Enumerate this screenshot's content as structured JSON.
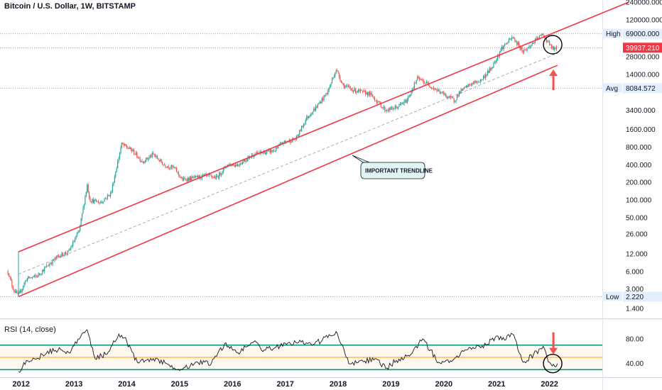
{
  "header": {
    "title": "Bitcoin / U.S. Dollar, 1W, BITSTAMP",
    "rsi_title": "RSI (14, close)"
  },
  "colors": {
    "up": "#26a69a",
    "down": "#ef5350",
    "channel": "#f23645",
    "rsi_band": "#089981",
    "rsi_mid": "#ff9800",
    "rsi_line": "#131722",
    "price_tag": "#f23645",
    "label_bg": "#e3effd"
  },
  "chart_data": [
    {
      "type": "candlestick",
      "title": "Bitcoin / U.S. Dollar, 1W, BITSTAMP",
      "y_scale": "log",
      "ylim": [
        1.0,
        240000
      ],
      "x_ticks": [
        "2012",
        "2013",
        "2014",
        "2015",
        "2016",
        "2017",
        "2018",
        "2019",
        "2020",
        "2021",
        "2022"
      ],
      "y_ticks": [
        "240000.000",
        "120000.000",
        "69000.000",
        "39937.210",
        "28000.000",
        "14000.000",
        "8084.572",
        "3400.000",
        "1600.000",
        "800.000",
        "400.000",
        "200.000",
        "100.000",
        "50.000",
        "26.000",
        "12.000",
        "6.000",
        "3.000",
        "2.220",
        "1.400"
      ],
      "levels": [
        {
          "name": "High",
          "value": 69000.0,
          "label": "69000.000"
        },
        {
          "name": "Current",
          "value": 39937.21,
          "label": "39937.210"
        },
        {
          "name": "Avg",
          "value": 8084.572,
          "label": "8084.572"
        },
        {
          "name": "Low",
          "value": 2.22,
          "label": "2.220"
        }
      ],
      "annotation": "IMPORTANT TRENDLINE",
      "price_path": [
        [
          2011.75,
          6.0
        ],
        [
          2011.85,
          3.0
        ],
        [
          2011.95,
          2.3
        ],
        [
          2012.1,
          4.5
        ],
        [
          2012.3,
          5.0
        ],
        [
          2012.5,
          7.5
        ],
        [
          2012.7,
          11.0
        ],
        [
          2012.9,
          13.0
        ],
        [
          2013.1,
          30.0
        ],
        [
          2013.25,
          180.0
        ],
        [
          2013.3,
          100.0
        ],
        [
          2013.5,
          90.0
        ],
        [
          2013.7,
          130.0
        ],
        [
          2013.9,
          900.0
        ],
        [
          2014.1,
          700.0
        ],
        [
          2014.3,
          450.0
        ],
        [
          2014.5,
          600.0
        ],
        [
          2014.7,
          400.0
        ],
        [
          2014.9,
          350.0
        ],
        [
          2015.05,
          220.0
        ],
        [
          2015.3,
          240.0
        ],
        [
          2015.5,
          260.0
        ],
        [
          2015.7,
          240.0
        ],
        [
          2015.9,
          400.0
        ],
        [
          2016.1,
          400.0
        ],
        [
          2016.4,
          600.0
        ],
        [
          2016.6,
          650.0
        ],
        [
          2016.8,
          700.0
        ],
        [
          2016.95,
          950.0
        ],
        [
          2017.2,
          1100.0
        ],
        [
          2017.4,
          2500.0
        ],
        [
          2017.6,
          4000.0
        ],
        [
          2017.8,
          7000.0
        ],
        [
          2017.96,
          17000.0
        ],
        [
          2018.1,
          9000.0
        ],
        [
          2018.3,
          7500.0
        ],
        [
          2018.6,
          6500.0
        ],
        [
          2018.9,
          3400.0
        ],
        [
          2019.1,
          3800.0
        ],
        [
          2019.3,
          5000.0
        ],
        [
          2019.5,
          12000.0
        ],
        [
          2019.7,
          9500.0
        ],
        [
          2019.9,
          7200.0
        ],
        [
          2020.2,
          5000.0
        ],
        [
          2020.3,
          7000.0
        ],
        [
          2020.5,
          9500.0
        ],
        [
          2020.7,
          11000.0
        ],
        [
          2020.9,
          18000.0
        ],
        [
          2021.1,
          40000.0
        ],
        [
          2021.3,
          60000.0
        ],
        [
          2021.5,
          35000.0
        ],
        [
          2021.6,
          40000.0
        ],
        [
          2021.8,
          61000.0
        ],
        [
          2021.88,
          67000.0
        ],
        [
          2022.0,
          45000.0
        ],
        [
          2022.08,
          37000.0
        ],
        [
          2022.15,
          39937.21
        ]
      ],
      "channel_upper": [
        [
          2011.95,
          13.0
        ],
        [
          2023.5,
          240000.0
        ]
      ],
      "channel_lower": [
        [
          2011.95,
          2.22
        ],
        [
          2022.15,
          20000.0
        ]
      ],
      "midline": [
        [
          2011.95,
          5.4
        ],
        [
          2022.15,
          32000.0
        ]
      ]
    },
    {
      "type": "line",
      "title": "RSI (14, close)",
      "ylim": [
        20,
        110
      ],
      "y_ticks": [
        "80.00",
        "40.00"
      ],
      "bands": {
        "upper": 70,
        "middle": 50,
        "lower": 30
      },
      "x": [
        2011.95,
        2012.1,
        2012.3,
        2012.5,
        2012.7,
        2012.9,
        2013.1,
        2013.25,
        2013.4,
        2013.6,
        2013.85,
        2013.95,
        2014.2,
        2014.5,
        2014.8,
        2015.05,
        2015.3,
        2015.6,
        2015.85,
        2016.1,
        2016.4,
        2016.6,
        2016.9,
        2017.1,
        2017.3,
        2017.5,
        2017.7,
        2017.96,
        2018.2,
        2018.5,
        2018.7,
        2018.9,
        2019.1,
        2019.35,
        2019.6,
        2019.9,
        2020.2,
        2020.4,
        2020.6,
        2020.8,
        2021.0,
        2021.15,
        2021.3,
        2021.5,
        2021.7,
        2021.88,
        2022.0,
        2022.1,
        2022.15
      ],
      "values": [
        27,
        45,
        48,
        60,
        62,
        58,
        80,
        95,
        48,
        55,
        88,
        82,
        42,
        48,
        38,
        30,
        42,
        40,
        72,
        58,
        75,
        62,
        68,
        72,
        75,
        70,
        78,
        92,
        40,
        44,
        48,
        32,
        45,
        52,
        80,
        42,
        48,
        62,
        65,
        70,
        85,
        78,
        88,
        42,
        55,
        68,
        42,
        35,
        40
      ]
    }
  ]
}
